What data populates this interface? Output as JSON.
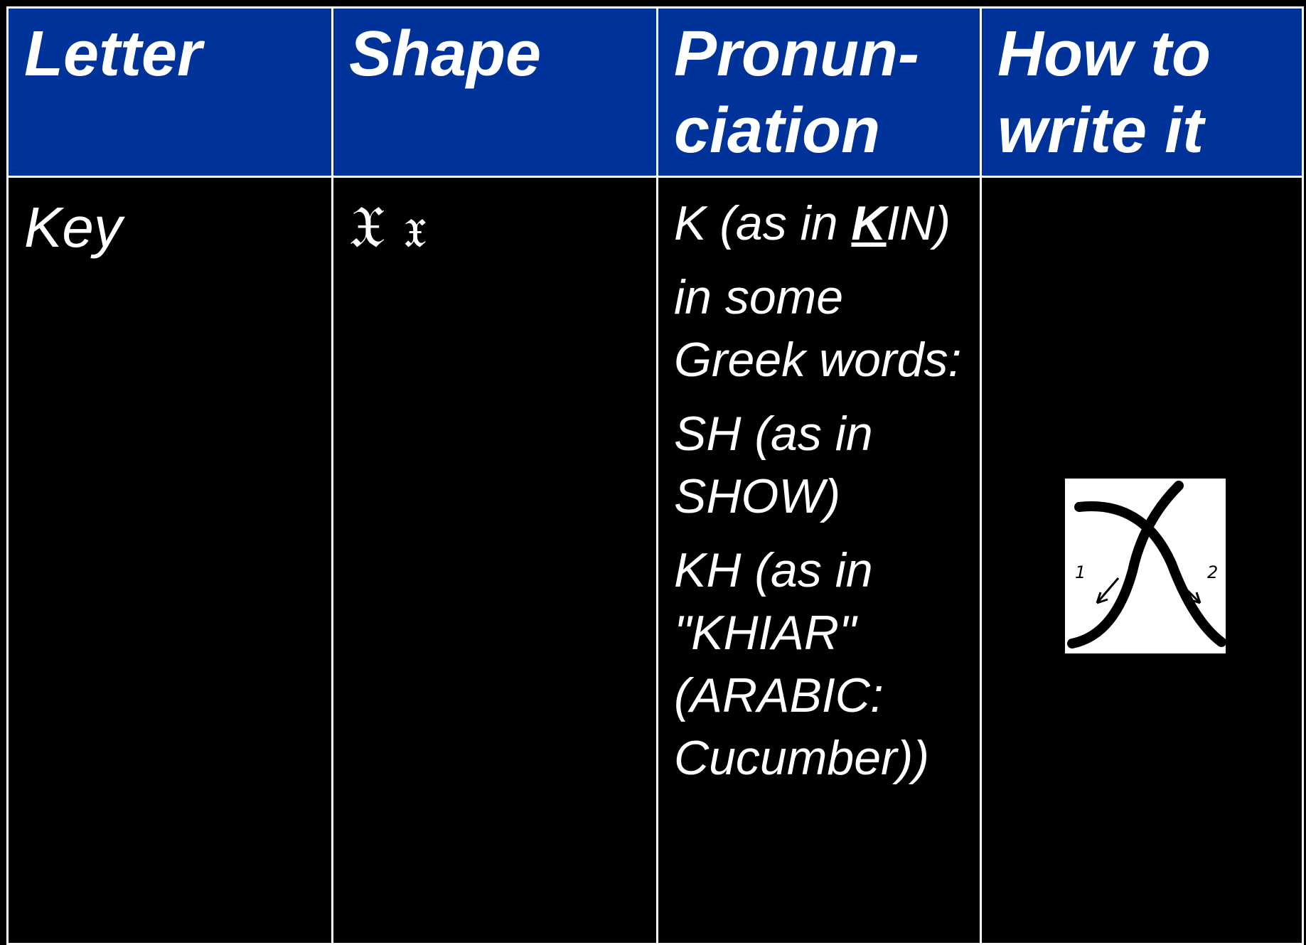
{
  "table": {
    "headers": [
      "Letter",
      "Shape",
      "Pronun-ciation",
      "How to write it"
    ],
    "rows": [
      [
        "Key",
        {
          "capital": "𝔛",
          "small": "𝔵"
        },
        {
          "paragraphs": [
            {
              "before": "K (as in ",
              "emphasis": "K",
              "after": "IN)"
            },
            {
              "text": "in some Greek words:"
            },
            {
              "text": "SH (as in SHOW)"
            },
            {
              "text": "KH (as in \"KHIAR\" (ARABIC: Cucumber))"
            }
          ]
        },
        {
          "stroke_labels": [
            "1",
            "2"
          ]
        }
      ]
    ]
  }
}
